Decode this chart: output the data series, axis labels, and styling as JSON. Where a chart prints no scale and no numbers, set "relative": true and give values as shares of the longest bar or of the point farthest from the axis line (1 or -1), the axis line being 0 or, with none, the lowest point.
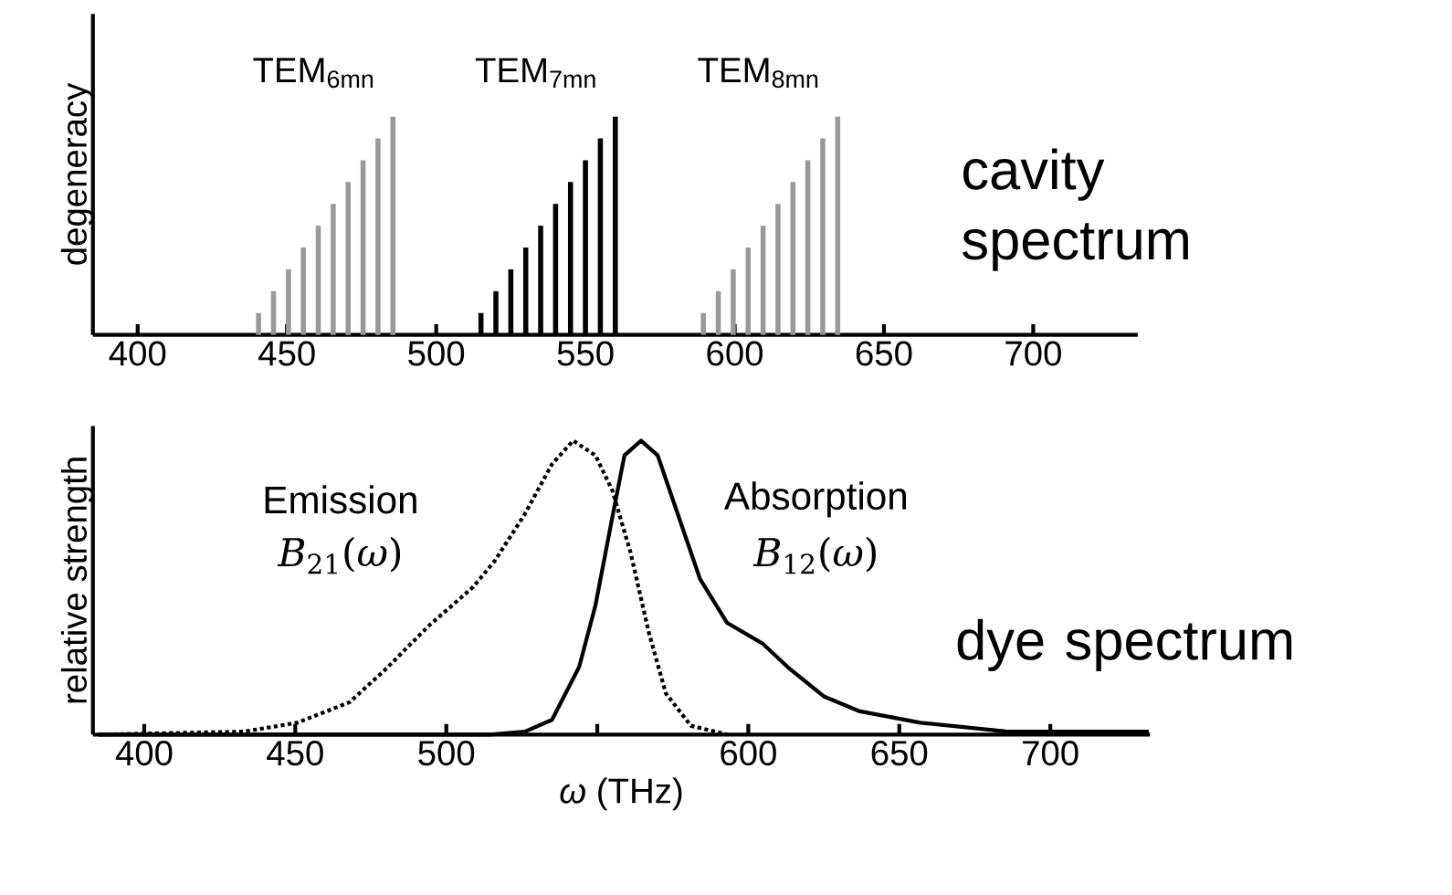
{
  "chart_data": [
    {
      "type": "bar",
      "relative": true,
      "ylabel": "degeneracy",
      "xlim": [
        385,
        735
      ],
      "xticks": [
        400,
        450,
        500,
        550,
        600,
        650,
        700
      ],
      "tick_labels": "x",
      "annotations": [
        "TEM$_{6mn}$",
        "TEM$_{7mn}$",
        "TEM$_{8mn}$",
        "cavity spectrum"
      ],
      "series": [
        {
          "color": "#999999",
          "x": [
            440.5,
            445.5,
            450.5,
            455.5,
            460.5,
            465.5,
            470.5,
            475.5,
            480.5,
            485.5
          ],
          "values": [
            0.1,
            0.2,
            0.3,
            0.4,
            0.5,
            0.6,
            0.7,
            0.8,
            0.9,
            1.0
          ]
        },
        {
          "color": "#000000",
          "x": [
            515,
            520,
            525,
            530,
            535,
            540,
            545,
            550,
            555,
            560
          ],
          "values": [
            0.1,
            0.2,
            0.3,
            0.4,
            0.5,
            0.6,
            0.7,
            0.8,
            0.9,
            1.0
          ]
        },
        {
          "color": "#999999",
          "x": [
            589.5,
            594.5,
            599.5,
            604.5,
            609.5,
            614.5,
            619.5,
            624.5,
            629.5,
            634.5
          ],
          "values": [
            0.1,
            0.2,
            0.3,
            0.4,
            0.5,
            0.6,
            0.7,
            0.8,
            0.9,
            1.0
          ]
        }
      ]
    },
    {
      "type": "line",
      "relative": true,
      "ylabel": "relative strength",
      "xlabel": "*ω* (THz)",
      "xlim": [
        383,
        733
      ],
      "xticks": [
        400,
        450,
        500,
        {
          "value": 550,
          "label": null
        },
        600,
        650,
        700
      ],
      "tick_labels": "x",
      "annotations": [
        "*B*$_{21}$(*ω*)",
        "*B*$_{12}$(*ω*)",
        "dye spectrum"
      ],
      "series": [
        {
          "name": "Emission",
          "color": "#000000",
          "line_style": "dotted",
          "x": [
            385,
            433,
            450.6,
            468,
            479.7,
            494.2,
            508.7,
            516,
            526,
            535,
            542,
            549.4,
            555,
            561,
            567,
            572.7,
            581,
            593
          ],
          "values": [
            0,
            0.01,
            0.04,
            0.11,
            0.22,
            0.37,
            0.5,
            0.59,
            0.75,
            0.92,
            1.0,
            0.95,
            0.83,
            0.62,
            0.35,
            0.14,
            0.03,
            0
          ]
        },
        {
          "name": "Absorption",
          "color": "#000000",
          "line_style": "solid",
          "x": [
            385,
            514.5,
            526,
            535,
            544,
            549.4,
            555,
            559,
            564.5,
            570,
            577,
            584,
            593,
            604.7,
            613,
            625,
            636.6,
            657,
            686,
            732.6
          ],
          "values": [
            0,
            0,
            0.01,
            0.05,
            0.23,
            0.44,
            0.74,
            0.95,
            1.0,
            0.95,
            0.74,
            0.53,
            0.38,
            0.31,
            0.23,
            0.13,
            0.08,
            0.04,
            0.01,
            0.01
          ]
        }
      ]
    }
  ]
}
